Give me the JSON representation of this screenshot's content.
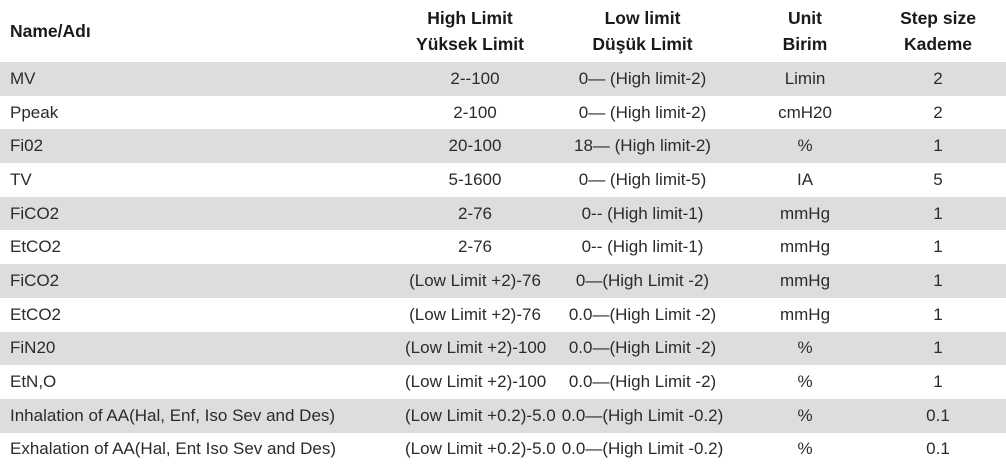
{
  "header": {
    "name": "Name/Adı",
    "high_1": "High Limit",
    "high_2": "Yüksek Limit",
    "low_1": "Low limit",
    "low_2": "Düşük Limit",
    "unit_1": "Unit",
    "unit_2": "Birim",
    "step_1": "Step size",
    "step_2": "Kademe"
  },
  "rows": [
    {
      "name": "MV",
      "high": "2--100",
      "low": "0— (High limit-2)",
      "unit": "Limin",
      "step": "2"
    },
    {
      "name": "Ppeak",
      "high": "2-100",
      "low": "0— (High limit-2)",
      "unit": "cmH20",
      "step": "2"
    },
    {
      "name": "Fi02",
      "high": "20-100",
      "low": "18— (High limit-2)",
      "unit": "%",
      "step": "1"
    },
    {
      "name": "TV",
      "high": "5-1600",
      "low": "0— (High limit-5)",
      "unit": "IA",
      "step": "5"
    },
    {
      "name": "FiCO2",
      "high": "2-76",
      "low": "0-- (High limit-1)",
      "unit": "mmHg",
      "step": "1"
    },
    {
      "name": "EtCO2",
      "high": "2-76",
      "low": "0-- (High limit-1)",
      "unit": "mmHg",
      "step": "1"
    },
    {
      "name": "FiCO2",
      "high": "(Low Limit +2)-76",
      "low": "0—(High Limit -2)",
      "unit": "mmHg",
      "step": "1"
    },
    {
      "name": "EtCO2",
      "high": "(Low Limit +2)-76",
      "low": "0.0—(High Limit -2)",
      "unit": "mmHg",
      "step": "1"
    },
    {
      "name": "FiN20",
      "high": "(Low Limit +2)-100",
      "low": "0.0—(High Limit -2)",
      "unit": "%",
      "step": "1"
    },
    {
      "name": "EtN,O",
      "high": "(Low Limit +2)-100",
      "low": "0.0—(High Limit -2)",
      "unit": "%",
      "step": "1"
    },
    {
      "name": "Inhalation of AA(Hal, Enf, Iso Sev and Des)",
      "high": "(Low Limit +0.2)-5.0",
      "low": "0.0—(High Limit -0.2)",
      "unit": "%",
      "step": "0.1"
    },
    {
      "name": "Exhalation of AA(Hal, Ent Iso Sev and Des)",
      "high": "(Low Limit +0.2)-5.0",
      "low": "0.0—(High Limit -0.2)",
      "unit": "%",
      "step": "0.1"
    }
  ]
}
